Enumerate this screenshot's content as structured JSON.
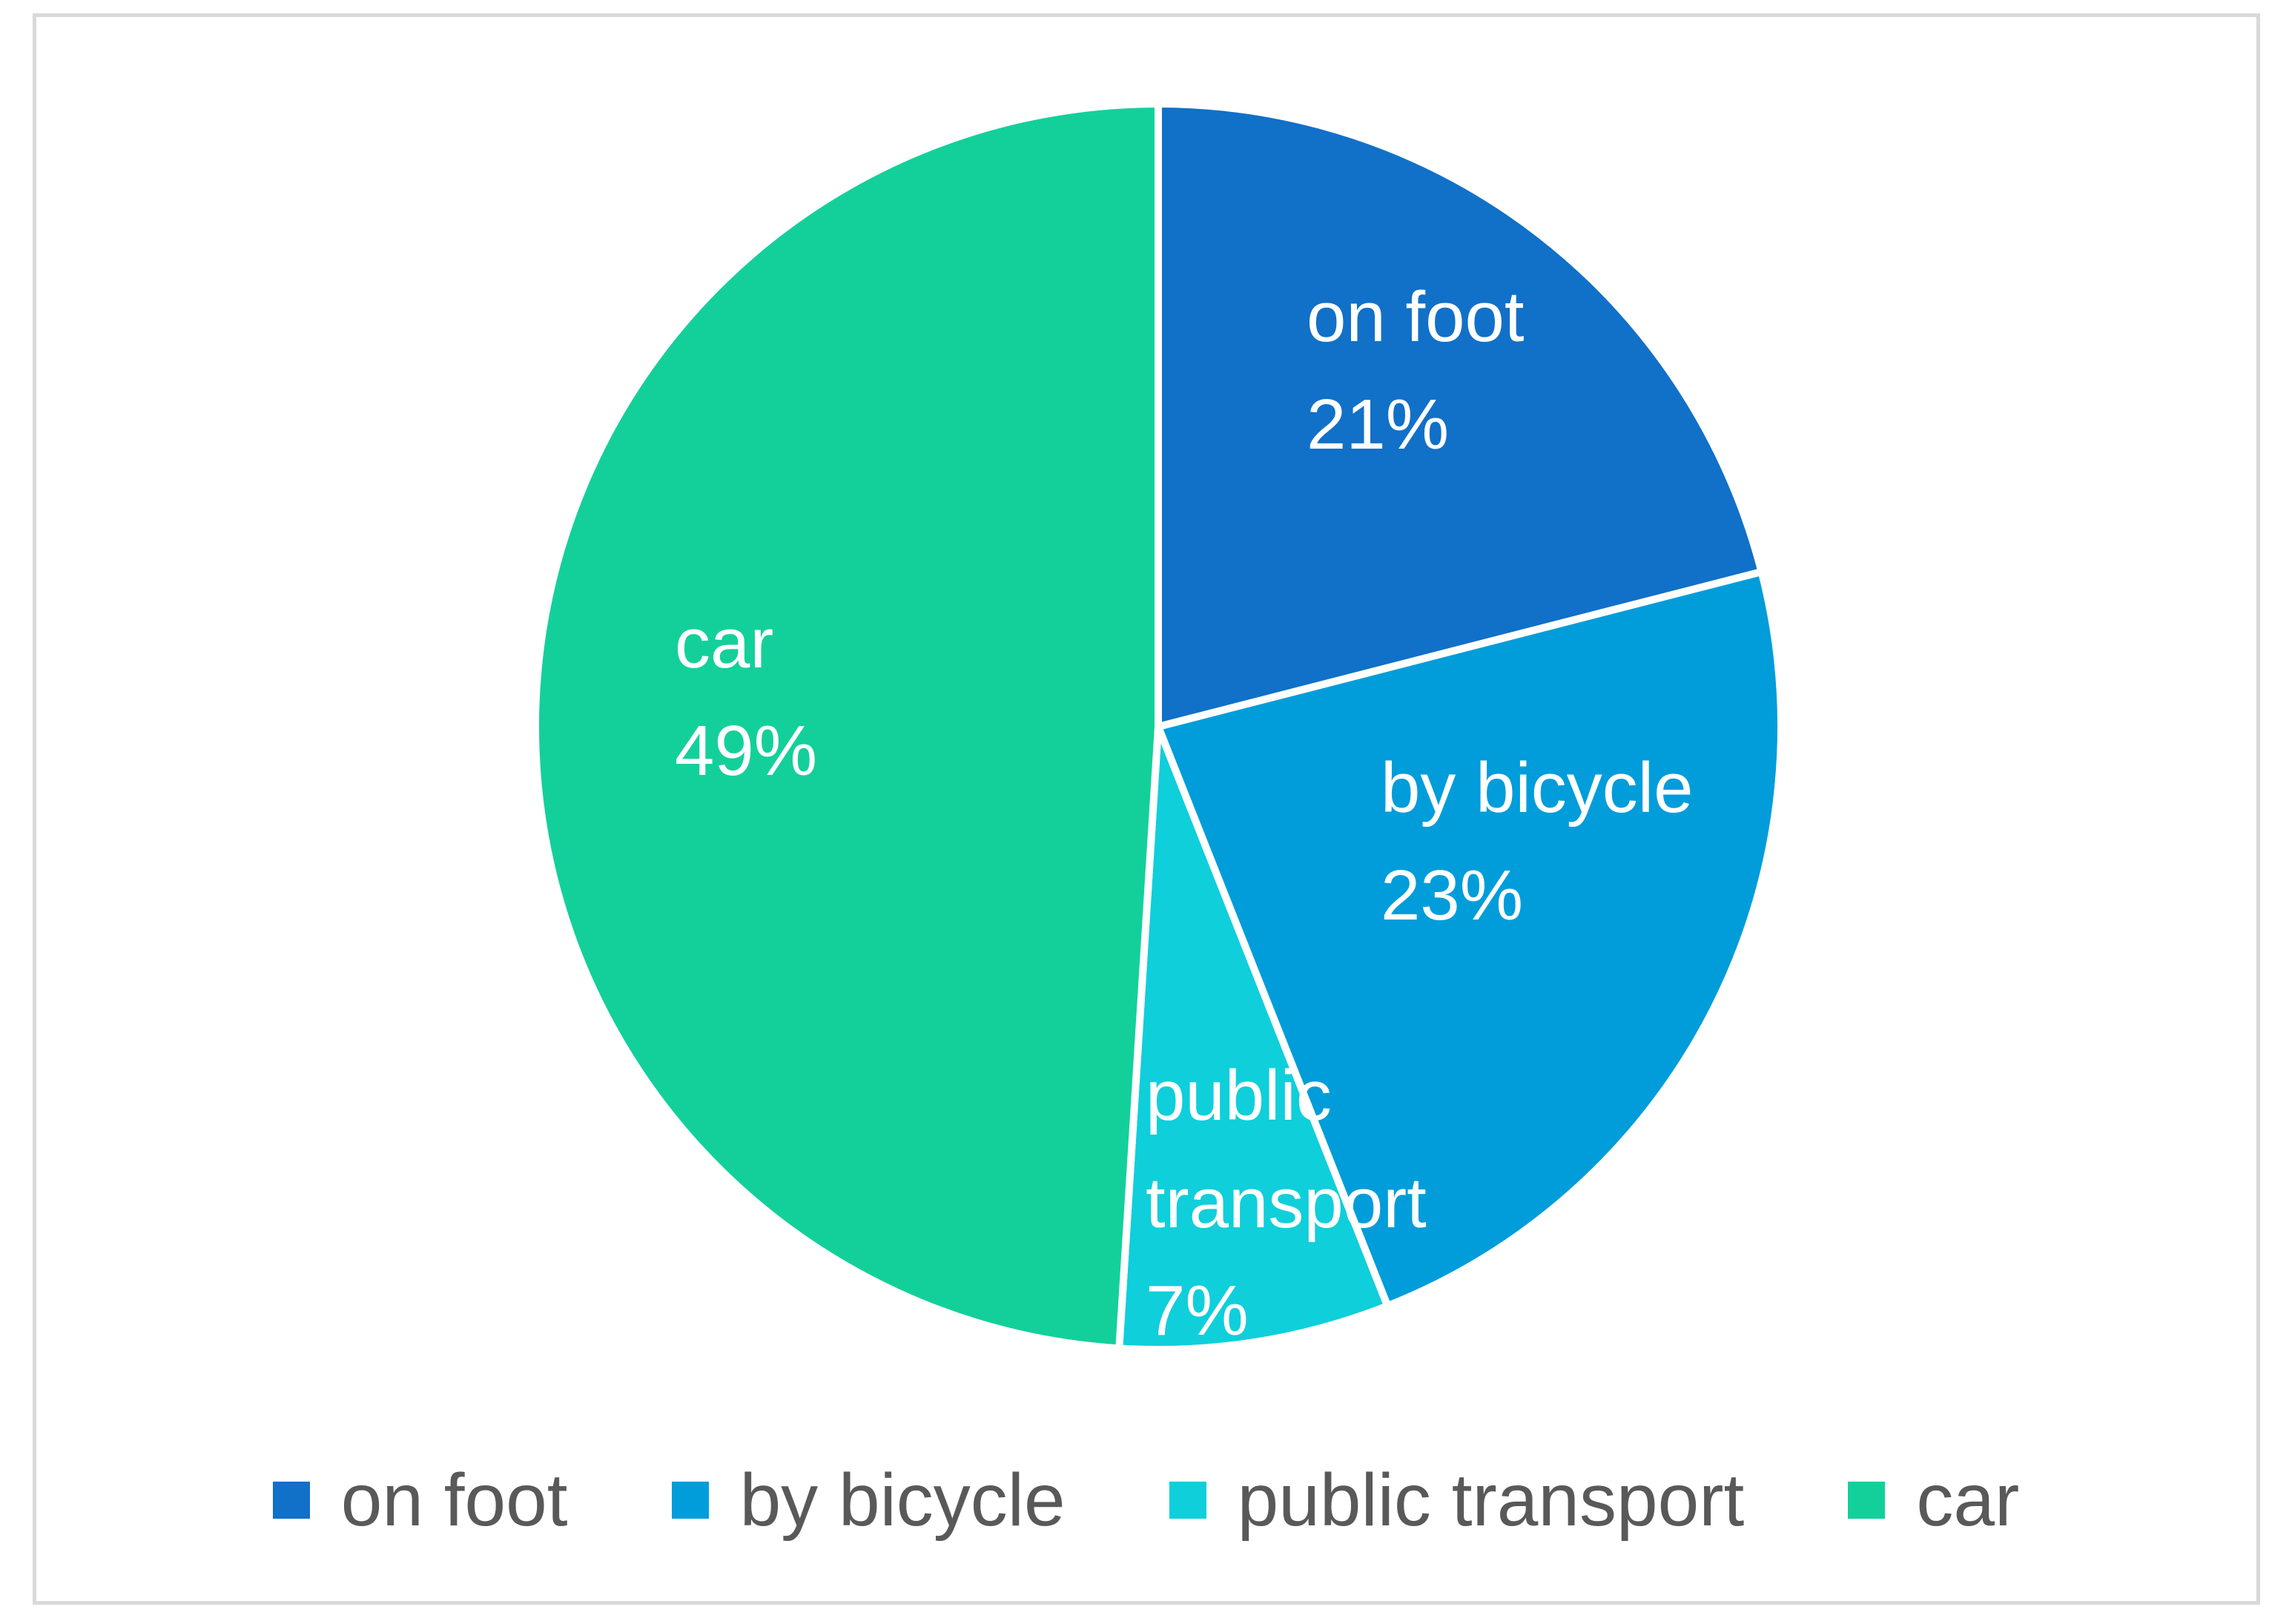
{
  "chart_data": {
    "type": "pie",
    "title": "",
    "start_angle_deg": 0,
    "direction": "clockwise",
    "slices": [
      {
        "label": "on foot",
        "value": 21,
        "color": "#1170C8",
        "data_label_lines": [
          "on foot",
          "21%"
        ]
      },
      {
        "label": "by bicycle",
        "value": 23,
        "color": "#009DDA",
        "data_label_lines": [
          "by bicycle",
          "23%"
        ]
      },
      {
        "label": "public transport",
        "value": 7,
        "color": "#0FCFDB",
        "data_label_lines": [
          "public",
          "transport",
          "7%"
        ]
      },
      {
        "label": "car",
        "value": 49,
        "color": "#13D09A",
        "data_label_lines": [
          "car",
          "49%"
        ]
      }
    ],
    "legend": {
      "position": "bottom",
      "entries": [
        "on foot",
        "by bicycle",
        "public transport",
        "car"
      ]
    }
  }
}
